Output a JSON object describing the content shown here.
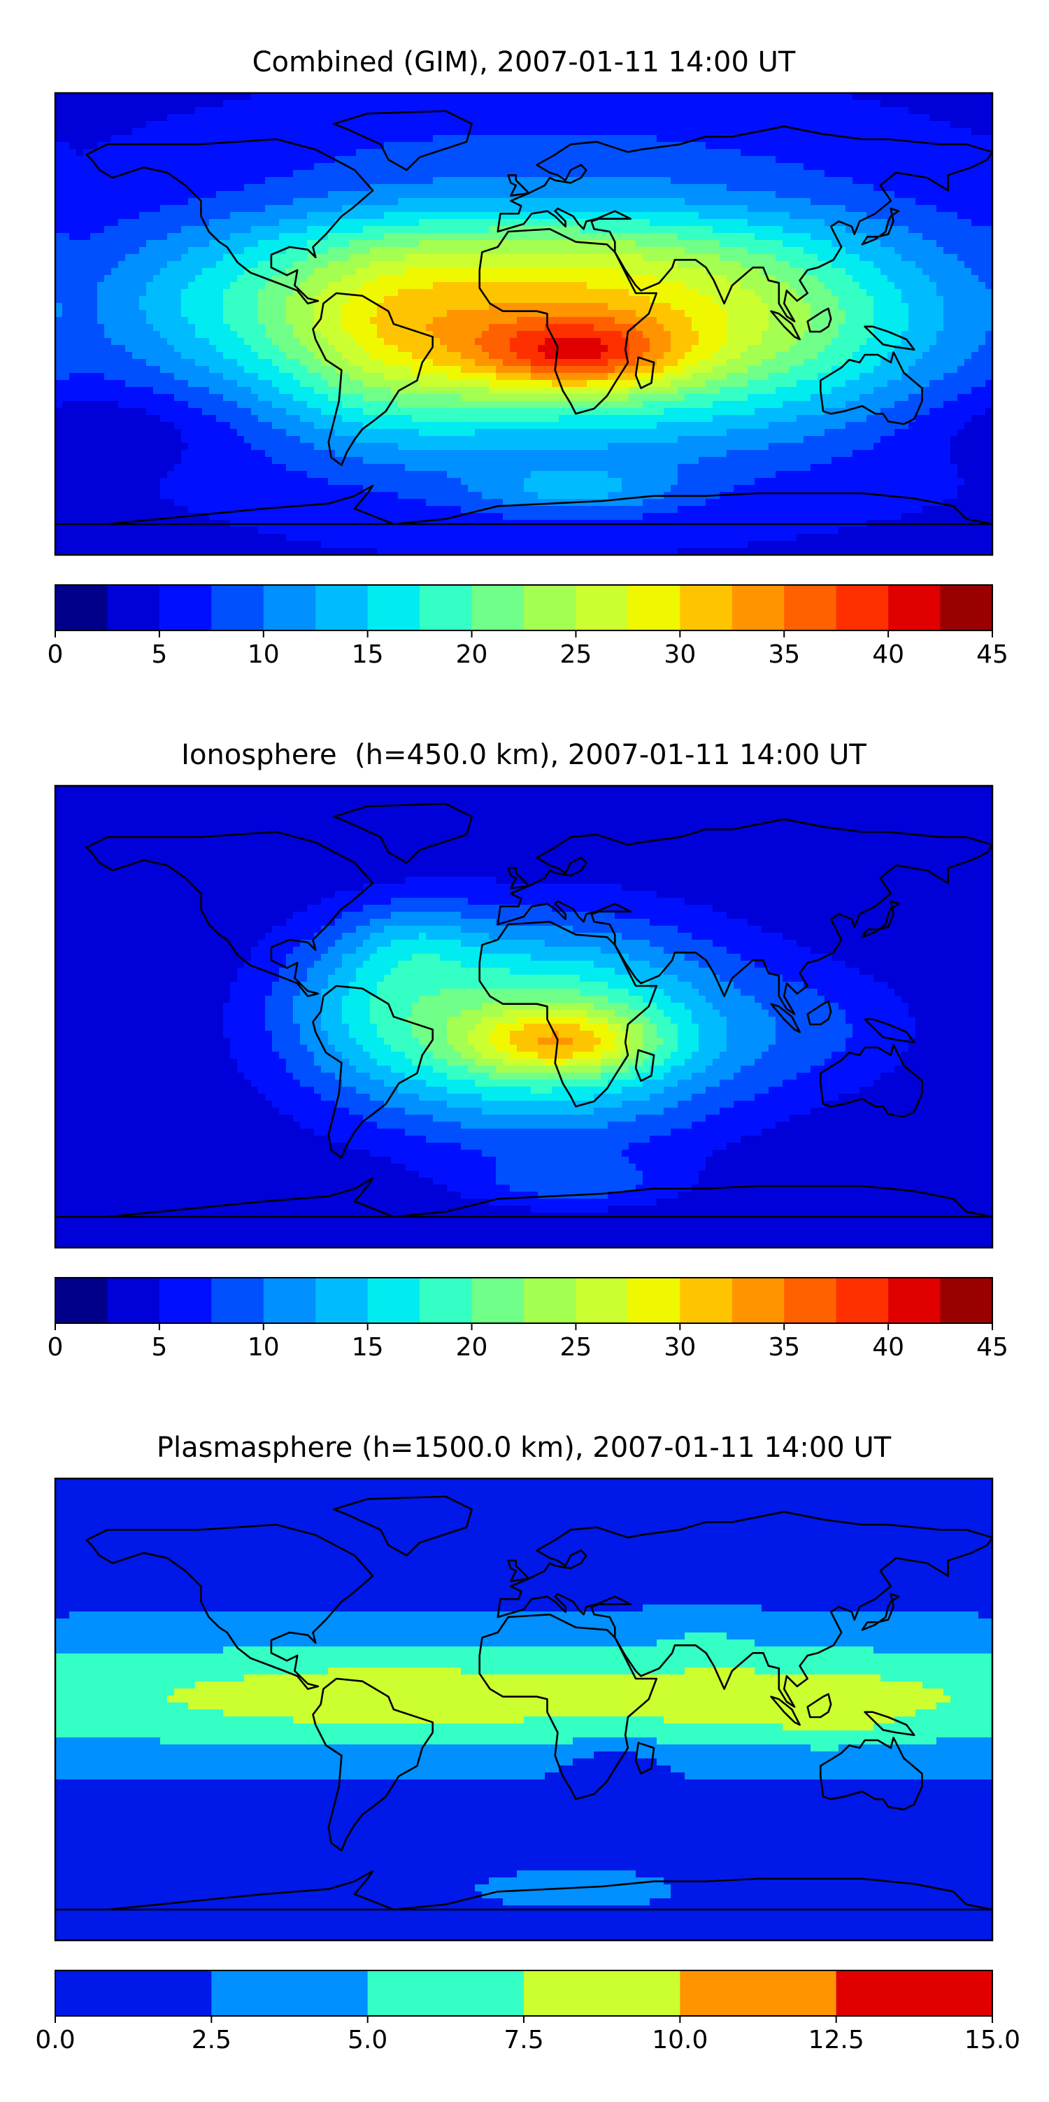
{
  "chart_data": [
    {
      "type": "heatmap",
      "title": "Combined (GIM), 2007-01-11 14:00 UT",
      "colorbar": {
        "ticks": [
          "0",
          "5",
          "10",
          "15",
          "20",
          "25",
          "30",
          "35",
          "40",
          "45"
        ],
        "levels": [
          0,
          2.5,
          5,
          7.5,
          10,
          12.5,
          15,
          17.5,
          20,
          22.5,
          25,
          27.5,
          30,
          32.5,
          35,
          37.5,
          40,
          42.5,
          45
        ],
        "colors": [
          "#00008b",
          "#0000d8",
          "#0010ff",
          "#0050ff",
          "#0090ff",
          "#00bcff",
          "#00ecf0",
          "#34ffc4",
          "#70ff88",
          "#a4ff50",
          "#ccff30",
          "#f0f800",
          "#ffc400",
          "#ff9400",
          "#ff6000",
          "#ff3000",
          "#e00000",
          "#990000"
        ]
      },
      "field": {
        "background": 4.5,
        "features": [
          {
            "lon": 10,
            "lat": 5,
            "rlon": 120,
            "rlat": 48,
            "amp": 26
          },
          {
            "lon": 20,
            "lat": -12,
            "rlon": 40,
            "rlat": 14,
            "amp": 13
          },
          {
            "lon": -55,
            "lat": -5,
            "rlon": 40,
            "rlat": 40,
            "amp": 6
          },
          {
            "lon": 110,
            "lat": 0,
            "rlon": 60,
            "rlat": 35,
            "amp": 5
          },
          {
            "lon": -120,
            "lat": 10,
            "rlon": 50,
            "rlat": 28,
            "amp": 4
          },
          {
            "lon": 0,
            "lat": 50,
            "rlon": 110,
            "rlat": 15,
            "amp": -3
          },
          {
            "lon": 20,
            "lat": -65,
            "rlon": 40,
            "rlat": 10,
            "amp": 6
          },
          {
            "lon": -160,
            "lat": -40,
            "rlon": 50,
            "rlat": 15,
            "amp": -3
          }
        ]
      }
    },
    {
      "type": "heatmap",
      "title": "Ionosphere  (h=450.0 km), 2007-01-11 14:00 UT",
      "colorbar": {
        "ticks": [
          "0",
          "5",
          "10",
          "15",
          "20",
          "25",
          "30",
          "35",
          "40",
          "45"
        ],
        "levels": [
          0,
          2.5,
          5,
          7.5,
          10,
          12.5,
          15,
          17.5,
          20,
          22.5,
          25,
          27.5,
          30,
          32.5,
          35,
          37.5,
          40,
          42.5,
          45
        ],
        "colors": [
          "#00008b",
          "#0000d8",
          "#0010ff",
          "#0050ff",
          "#0090ff",
          "#00bcff",
          "#00ecf0",
          "#34ffc4",
          "#70ff88",
          "#a4ff50",
          "#ccff30",
          "#f0f800",
          "#ffc400",
          "#ff9400",
          "#ff6000",
          "#ff3000",
          "#e00000",
          "#990000"
        ]
      },
      "field": {
        "background": 2.5,
        "features": [
          {
            "lon": 5,
            "lat": -5,
            "rlon": 80,
            "rlat": 40,
            "amp": 20
          },
          {
            "lon": 15,
            "lat": -10,
            "rlon": 35,
            "rlat": 12,
            "amp": 11
          },
          {
            "lon": -60,
            "lat": 10,
            "rlon": 35,
            "rlat": 30,
            "amp": 5
          },
          {
            "lon": -40,
            "lat": 30,
            "rlon": 25,
            "rlat": 15,
            "amp": 4
          },
          {
            "lon": 20,
            "lat": -65,
            "rlon": 40,
            "rlat": 10,
            "amp": 5
          },
          {
            "lon": 120,
            "lat": -5,
            "rlon": 40,
            "rlat": 25,
            "amp": 3
          }
        ]
      }
    },
    {
      "type": "heatmap",
      "title": "Plasmasphere (h=1500.0 km), 2007-01-11 14:00 UT",
      "colorbar": {
        "ticks": [
          "0.0",
          "2.5",
          "5.0",
          "7.5",
          "10.0",
          "12.5",
          "15.0"
        ],
        "levels": [
          0,
          2.5,
          5,
          7.5,
          10,
          12.5,
          15
        ],
        "colors": [
          "#0018e8",
          "#0090ff",
          "#34ffc4",
          "#ccff30",
          "#ff9400",
          "#e00000"
        ]
      },
      "field": {
        "background": 1.6,
        "features": [
          {
            "lon": 0,
            "lat": 5,
            "rlon": 400,
            "rlat": 24,
            "amp": 6.3
          },
          {
            "lon": -60,
            "lat": 5,
            "rlon": 60,
            "rlat": 15,
            "amp": 1.3
          },
          {
            "lon": 100,
            "lat": 5,
            "rlon": 70,
            "rlat": 15,
            "amp": 1.3
          },
          {
            "lon": 70,
            "lat": 30,
            "rlon": 20,
            "rlat": 10,
            "amp": 1.2
          },
          {
            "lon": 120,
            "lat": -5,
            "rlon": 20,
            "rlat": 8,
            "amp": 1.6
          },
          {
            "lon": 35,
            "lat": -25,
            "rlon": 18,
            "rlat": 12,
            "amp": -3.2
          },
          {
            "lon": 20,
            "lat": -70,
            "rlon": 40,
            "rlat": 8,
            "amp": 2.2
          }
        ]
      }
    }
  ],
  "continents": [
    [
      [
        -168,
        66
      ],
      [
        -160,
        70
      ],
      [
        -140,
        70
      ],
      [
        -125,
        70
      ],
      [
        -95,
        72
      ],
      [
        -80,
        68
      ],
      [
        -65,
        60
      ],
      [
        -58,
        52
      ],
      [
        -66,
        45
      ],
      [
        -70,
        42
      ],
      [
        -76,
        35
      ],
      [
        -81,
        30
      ],
      [
        -80,
        26
      ],
      [
        -83,
        29
      ],
      [
        -90,
        30
      ],
      [
        -97,
        27
      ],
      [
        -97,
        22
      ],
      [
        -91,
        19
      ],
      [
        -87,
        21
      ],
      [
        -88,
        15
      ],
      [
        -83,
        10
      ],
      [
        -79,
        9
      ],
      [
        -83,
        8
      ],
      [
        -87,
        13
      ],
      [
        -92,
        15
      ],
      [
        -105,
        20
      ],
      [
        -110,
        24
      ],
      [
        -114,
        30
      ],
      [
        -117,
        32
      ],
      [
        -121,
        36
      ],
      [
        -124,
        42
      ],
      [
        -124,
        48
      ],
      [
        -130,
        54
      ],
      [
        -137,
        59
      ],
      [
        -146,
        61
      ],
      [
        -152,
        59
      ],
      [
        -158,
        57
      ],
      [
        -163,
        60
      ],
      [
        -166,
        64
      ]
    ],
    [
      [
        -77,
        8
      ],
      [
        -72,
        12
      ],
      [
        -62,
        11
      ],
      [
        -52,
        5
      ],
      [
        -50,
        0
      ],
      [
        -44,
        -2
      ],
      [
        -35,
        -5
      ],
      [
        -35,
        -9
      ],
      [
        -39,
        -15
      ],
      [
        -41,
        -22
      ],
      [
        -48,
        -26
      ],
      [
        -53,
        -34
      ],
      [
        -58,
        -38
      ],
      [
        -62,
        -41
      ],
      [
        -65,
        -45
      ],
      [
        -68,
        -50
      ],
      [
        -70,
        -55
      ],
      [
        -74,
        -52
      ],
      [
        -75,
        -46
      ],
      [
        -73,
        -38
      ],
      [
        -71,
        -30
      ],
      [
        -70,
        -18
      ],
      [
        -76,
        -14
      ],
      [
        -80,
        -6
      ],
      [
        -81,
        -2
      ],
      [
        -78,
        2
      ]
    ],
    [
      [
        -73,
        78
      ],
      [
        -60,
        82
      ],
      [
        -30,
        83
      ],
      [
        -20,
        78
      ],
      [
        -22,
        71
      ],
      [
        -40,
        65
      ],
      [
        -45,
        60
      ],
      [
        -52,
        64
      ],
      [
        -55,
        70
      ],
      [
        -68,
        76
      ]
    ],
    [
      [
        -17,
        21
      ],
      [
        -16,
        28
      ],
      [
        -10,
        30
      ],
      [
        -6,
        36
      ],
      [
        10,
        37
      ],
      [
        20,
        32
      ],
      [
        32,
        31
      ],
      [
        35,
        28
      ],
      [
        43,
        12
      ],
      [
        51,
        12
      ],
      [
        48,
        4
      ],
      [
        40,
        -3
      ],
      [
        39,
        -10
      ],
      [
        40,
        -15
      ],
      [
        35,
        -23
      ],
      [
        32,
        -28
      ],
      [
        27,
        -33
      ],
      [
        20,
        -35
      ],
      [
        18,
        -31
      ],
      [
        15,
        -26
      ],
      [
        12,
        -18
      ],
      [
        13,
        -9
      ],
      [
        9,
        -1
      ],
      [
        9,
        4
      ],
      [
        5,
        5
      ],
      [
        -4,
        5
      ],
      [
        -8,
        5
      ],
      [
        -13,
        8
      ],
      [
        -17,
        14
      ]
    ],
    [
      [
        44,
        -13
      ],
      [
        50,
        -15
      ],
      [
        49,
        -23
      ],
      [
        45,
        -25
      ],
      [
        43,
        -20
      ]
    ],
    [
      [
        -10,
        36
      ],
      [
        -9,
        43
      ],
      [
        -2,
        43
      ],
      [
        -1,
        46
      ],
      [
        -5,
        48
      ],
      [
        2,
        51
      ],
      [
        8,
        54
      ],
      [
        10,
        57
      ],
      [
        12,
        56
      ],
      [
        18,
        55
      ],
      [
        22,
        57
      ],
      [
        24,
        60
      ],
      [
        22,
        62
      ],
      [
        18,
        60
      ],
      [
        16,
        56
      ],
      [
        13,
        58
      ],
      [
        10,
        59
      ],
      [
        5,
        62
      ],
      [
        12,
        66
      ],
      [
        18,
        70
      ],
      [
        28,
        71
      ],
      [
        40,
        67
      ],
      [
        45,
        68
      ],
      [
        60,
        70
      ],
      [
        70,
        73
      ],
      [
        80,
        73
      ],
      [
        100,
        77
      ],
      [
        115,
        74
      ],
      [
        130,
        72
      ],
      [
        140,
        72
      ],
      [
        160,
        70
      ],
      [
        170,
        70
      ],
      [
        180,
        67
      ],
      [
        178,
        64
      ],
      [
        172,
        61
      ],
      [
        163,
        58
      ],
      [
        163,
        52
      ],
      [
        155,
        57
      ],
      [
        143,
        59
      ],
      [
        137,
        54
      ],
      [
        141,
        48
      ],
      [
        135,
        43
      ],
      [
        129,
        40
      ],
      [
        127,
        35
      ],
      [
        126,
        38
      ],
      [
        121,
        40
      ],
      [
        118,
        38
      ],
      [
        121,
        32
      ],
      [
        122,
        30
      ],
      [
        119,
        25
      ],
      [
        113,
        22
      ],
      [
        109,
        21
      ],
      [
        106,
        17
      ],
      [
        109,
        12
      ],
      [
        105,
        9
      ],
      [
        101,
        13
      ],
      [
        100,
        8
      ],
      [
        104,
        1
      ],
      [
        101,
        3
      ],
      [
        98,
        8
      ],
      [
        98,
        16
      ],
      [
        94,
        17
      ],
      [
        92,
        22
      ],
      [
        88,
        22
      ],
      [
        80,
        15
      ],
      [
        77,
        8
      ],
      [
        73,
        17
      ],
      [
        70,
        22
      ],
      [
        66,
        25
      ],
      [
        58,
        25
      ],
      [
        57,
        22
      ],
      [
        52,
        16
      ],
      [
        45,
        13
      ],
      [
        43,
        15
      ],
      [
        39,
        21
      ],
      [
        35,
        28
      ],
      [
        35,
        32
      ],
      [
        33,
        36
      ],
      [
        27,
        37
      ],
      [
        26,
        40
      ],
      [
        29,
        41
      ],
      [
        37,
        41
      ],
      [
        41,
        41
      ],
      [
        35,
        44
      ],
      [
        28,
        41
      ],
      [
        24,
        40
      ],
      [
        23,
        37
      ],
      [
        21,
        39
      ],
      [
        19,
        42
      ],
      [
        13,
        45
      ],
      [
        12,
        44
      ],
      [
        16,
        40
      ],
      [
        16,
        38
      ],
      [
        12,
        42
      ],
      [
        9,
        44
      ],
      [
        3,
        43
      ],
      [
        0,
        39
      ]
    ],
    [
      [
        114,
        -22
      ],
      [
        114,
        -26
      ],
      [
        115,
        -34
      ],
      [
        118,
        -35
      ],
      [
        123,
        -34
      ],
      [
        130,
        -32
      ],
      [
        135,
        -35
      ],
      [
        138,
        -35
      ],
      [
        140,
        -38
      ],
      [
        146,
        -39
      ],
      [
        150,
        -37
      ],
      [
        153,
        -30
      ],
      [
        153,
        -25
      ],
      [
        146,
        -19
      ],
      [
        142,
        -11
      ],
      [
        141,
        -15
      ],
      [
        136,
        -12
      ],
      [
        131,
        -12
      ],
      [
        129,
        -15
      ],
      [
        125,
        -14
      ],
      [
        122,
        -17
      ]
    ],
    [
      [
        -5,
        50
      ],
      [
        2,
        51
      ],
      [
        0,
        53
      ],
      [
        -3,
        56
      ],
      [
        -3,
        58
      ],
      [
        -6,
        58
      ],
      [
        -5,
        55
      ],
      [
        -3,
        54
      ],
      [
        -4,
        52
      ]
    ],
    [
      [
        130,
        31
      ],
      [
        132,
        34
      ],
      [
        136,
        34
      ],
      [
        140,
        35
      ],
      [
        142,
        40
      ],
      [
        141,
        45
      ],
      [
        144,
        44
      ],
      [
        141,
        42
      ],
      [
        140,
        40
      ],
      [
        139,
        36
      ],
      [
        135,
        33
      ]
    ],
    [
      [
        95,
        5
      ],
      [
        98,
        4
      ],
      [
        103,
        0
      ],
      [
        106,
        -6
      ],
      [
        104,
        -5
      ],
      [
        100,
        -1
      ]
    ],
    [
      [
        109,
        1
      ],
      [
        110,
        -3
      ],
      [
        114,
        -3
      ],
      [
        117,
        -1
      ],
      [
        118,
        2
      ],
      [
        117,
        6
      ],
      [
        115,
        5
      ]
    ],
    [
      [
        131,
        -1
      ],
      [
        134,
        -1
      ],
      [
        140,
        -3
      ],
      [
        147,
        -6
      ],
      [
        150,
        -10
      ],
      [
        143,
        -9
      ],
      [
        138,
        -8
      ],
      [
        134,
        -4
      ]
    ],
    [
      [
        -180,
        -78
      ],
      [
        -160,
        -78
      ],
      [
        -140,
        -76
      ],
      [
        -120,
        -74
      ],
      [
        -100,
        -72
      ],
      [
        -75,
        -70
      ],
      [
        -65,
        -67
      ],
      [
        -58,
        -63
      ],
      [
        -60,
        -66
      ],
      [
        -65,
        -72
      ],
      [
        -50,
        -78
      ],
      [
        -30,
        -76
      ],
      [
        -10,
        -71
      ],
      [
        10,
        -70
      ],
      [
        30,
        -69
      ],
      [
        50,
        -67
      ],
      [
        70,
        -67
      ],
      [
        90,
        -66
      ],
      [
        110,
        -66
      ],
      [
        130,
        -66
      ],
      [
        150,
        -68
      ],
      [
        165,
        -71
      ],
      [
        170,
        -76
      ],
      [
        180,
        -78
      ]
    ]
  ]
}
